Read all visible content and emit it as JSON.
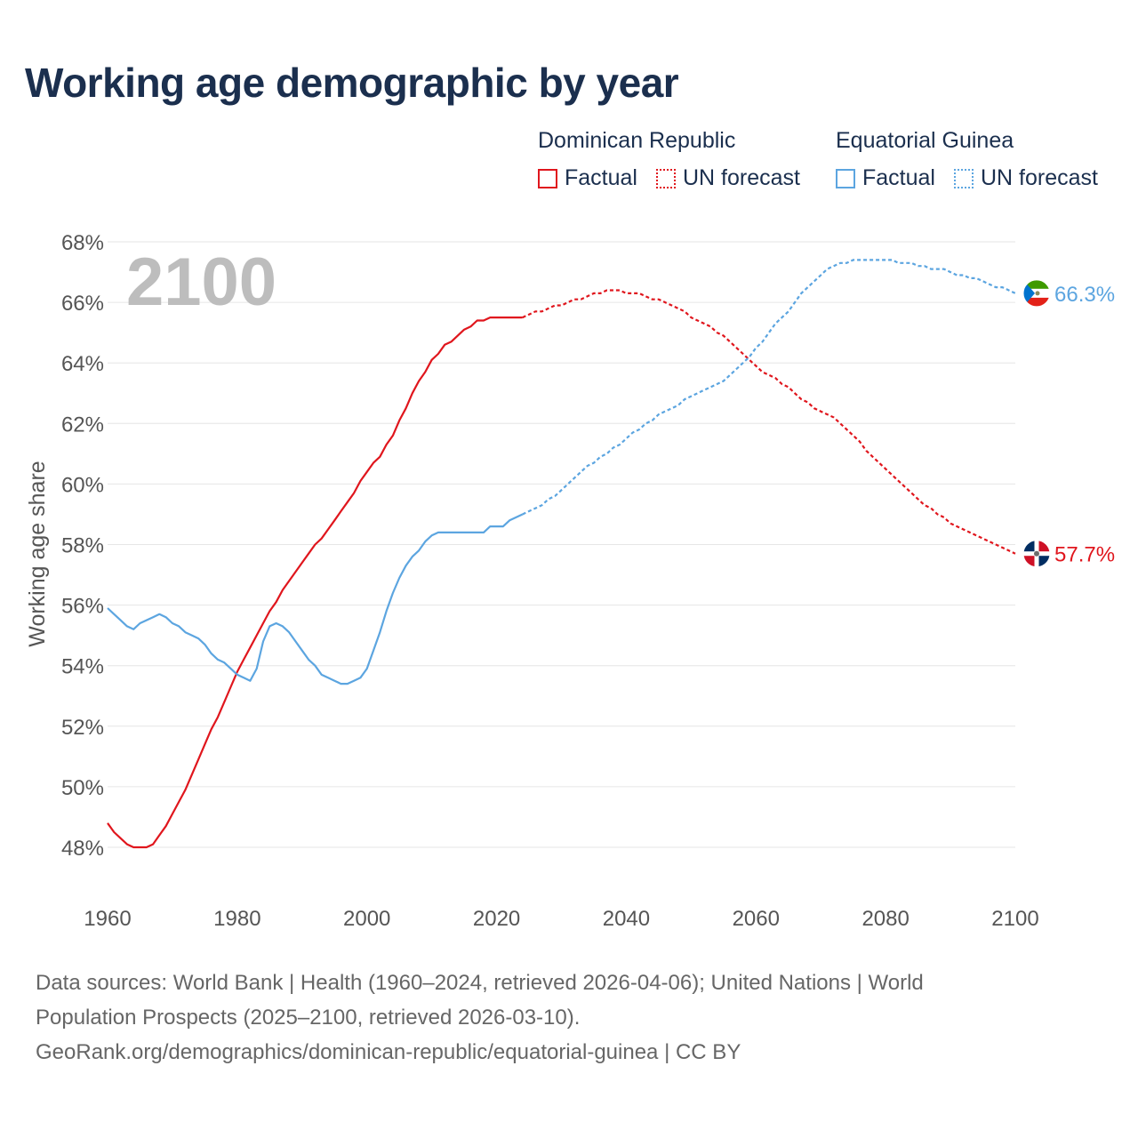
{
  "title": "Working age demographic by year",
  "legend": {
    "groups": [
      {
        "name": "Dominican Republic",
        "factual": "Factual",
        "forecast": "UN forecast",
        "color": "#e0161d"
      },
      {
        "name": "Equatorial Guinea",
        "factual": "Factual",
        "forecast": "UN forecast",
        "color": "#5ca5e0"
      }
    ]
  },
  "year_watermark": "2100",
  "end_labels": {
    "equatorial_guinea": "66.3%",
    "dominican_republic": "57.7%"
  },
  "footer": {
    "line1": "Data sources: World Bank | Health (1960–2024, retrieved 2026-04-06); United Nations | World",
    "line2": "Population Prospects (2025–2100, retrieved 2026-03-10).",
    "line3": "GeoRank.org/demographics/dominican-republic/equatorial-guinea | CC BY"
  },
  "chart_data": {
    "type": "line",
    "title": "Working age demographic by year",
    "xlabel": "",
    "ylabel": "Working age share",
    "xlim": [
      1960,
      2100
    ],
    "ylim": [
      47,
      68
    ],
    "x_ticks": [
      1960,
      1980,
      2000,
      2020,
      2040,
      2060,
      2080,
      2100
    ],
    "y_ticks": [
      48,
      50,
      52,
      54,
      56,
      58,
      60,
      62,
      64,
      66,
      68
    ],
    "y_tick_labels": [
      "48%",
      "50%",
      "52%",
      "54%",
      "56%",
      "58%",
      "60%",
      "62%",
      "64%",
      "66%",
      "68%"
    ],
    "x_tick_labels": [
      "1960",
      "1980",
      "2000",
      "2020",
      "2040",
      "2060",
      "2080",
      "2100"
    ],
    "factual_end_year": 2024,
    "series": [
      {
        "name": "Dominican Republic",
        "color": "#e0161d",
        "points": [
          [
            1960,
            48.8
          ],
          [
            1961,
            48.5
          ],
          [
            1962,
            48.3
          ],
          [
            1963,
            48.1
          ],
          [
            1964,
            48.0
          ],
          [
            1965,
            48.0
          ],
          [
            1966,
            48.0
          ],
          [
            1967,
            48.1
          ],
          [
            1968,
            48.4
          ],
          [
            1969,
            48.7
          ],
          [
            1970,
            49.1
          ],
          [
            1971,
            49.5
          ],
          [
            1972,
            49.9
          ],
          [
            1973,
            50.4
          ],
          [
            1974,
            50.9
          ],
          [
            1975,
            51.4
          ],
          [
            1976,
            51.9
          ],
          [
            1977,
            52.3
          ],
          [
            1978,
            52.8
          ],
          [
            1979,
            53.3
          ],
          [
            1980,
            53.8
          ],
          [
            1981,
            54.2
          ],
          [
            1982,
            54.6
          ],
          [
            1983,
            55.0
          ],
          [
            1984,
            55.4
          ],
          [
            1985,
            55.8
          ],
          [
            1986,
            56.1
          ],
          [
            1987,
            56.5
          ],
          [
            1988,
            56.8
          ],
          [
            1989,
            57.1
          ],
          [
            1990,
            57.4
          ],
          [
            1991,
            57.7
          ],
          [
            1992,
            58.0
          ],
          [
            1993,
            58.2
          ],
          [
            1994,
            58.5
          ],
          [
            1995,
            58.8
          ],
          [
            1996,
            59.1
          ],
          [
            1997,
            59.4
          ],
          [
            1998,
            59.7
          ],
          [
            1999,
            60.1
          ],
          [
            2000,
            60.4
          ],
          [
            2001,
            60.7
          ],
          [
            2002,
            60.9
          ],
          [
            2003,
            61.3
          ],
          [
            2004,
            61.6
          ],
          [
            2005,
            62.1
          ],
          [
            2006,
            62.5
          ],
          [
            2007,
            63.0
          ],
          [
            2008,
            63.4
          ],
          [
            2009,
            63.7
          ],
          [
            2010,
            64.1
          ],
          [
            2011,
            64.3
          ],
          [
            2012,
            64.6
          ],
          [
            2013,
            64.7
          ],
          [
            2014,
            64.9
          ],
          [
            2015,
            65.1
          ],
          [
            2016,
            65.2
          ],
          [
            2017,
            65.4
          ],
          [
            2018,
            65.4
          ],
          [
            2019,
            65.5
          ],
          [
            2020,
            65.5
          ],
          [
            2021,
            65.5
          ],
          [
            2022,
            65.5
          ],
          [
            2023,
            65.5
          ],
          [
            2024,
            65.5
          ],
          [
            2025,
            65.6
          ],
          [
            2026,
            65.7
          ],
          [
            2027,
            65.7
          ],
          [
            2028,
            65.8
          ],
          [
            2029,
            65.9
          ],
          [
            2030,
            65.9
          ],
          [
            2031,
            66.0
          ],
          [
            2032,
            66.1
          ],
          [
            2033,
            66.1
          ],
          [
            2034,
            66.2
          ],
          [
            2035,
            66.3
          ],
          [
            2036,
            66.3
          ],
          [
            2037,
            66.4
          ],
          [
            2038,
            66.4
          ],
          [
            2039,
            66.4
          ],
          [
            2040,
            66.3
          ],
          [
            2041,
            66.3
          ],
          [
            2042,
            66.3
          ],
          [
            2043,
            66.2
          ],
          [
            2044,
            66.1
          ],
          [
            2045,
            66.1
          ],
          [
            2046,
            66.0
          ],
          [
            2047,
            65.9
          ],
          [
            2048,
            65.8
          ],
          [
            2049,
            65.7
          ],
          [
            2050,
            65.5
          ],
          [
            2051,
            65.4
          ],
          [
            2052,
            65.3
          ],
          [
            2053,
            65.2
          ],
          [
            2054,
            65.0
          ],
          [
            2055,
            64.9
          ],
          [
            2056,
            64.7
          ],
          [
            2057,
            64.5
          ],
          [
            2058,
            64.3
          ],
          [
            2059,
            64.1
          ],
          [
            2060,
            63.9
          ],
          [
            2061,
            63.7
          ],
          [
            2062,
            63.6
          ],
          [
            2063,
            63.5
          ],
          [
            2064,
            63.3
          ],
          [
            2065,
            63.2
          ],
          [
            2066,
            63.0
          ],
          [
            2067,
            62.8
          ],
          [
            2068,
            62.7
          ],
          [
            2069,
            62.5
          ],
          [
            2070,
            62.4
          ],
          [
            2071,
            62.3
          ],
          [
            2072,
            62.2
          ],
          [
            2073,
            62.0
          ],
          [
            2074,
            61.8
          ],
          [
            2075,
            61.6
          ],
          [
            2076,
            61.4
          ],
          [
            2077,
            61.1
          ],
          [
            2078,
            60.9
          ],
          [
            2079,
            60.7
          ],
          [
            2080,
            60.5
          ],
          [
            2081,
            60.3
          ],
          [
            2082,
            60.1
          ],
          [
            2083,
            59.9
          ],
          [
            2084,
            59.7
          ],
          [
            2085,
            59.5
          ],
          [
            2086,
            59.3
          ],
          [
            2087,
            59.2
          ],
          [
            2088,
            59.0
          ],
          [
            2089,
            58.9
          ],
          [
            2090,
            58.7
          ],
          [
            2091,
            58.6
          ],
          [
            2092,
            58.5
          ],
          [
            2093,
            58.4
          ],
          [
            2094,
            58.3
          ],
          [
            2095,
            58.2
          ],
          [
            2096,
            58.1
          ],
          [
            2097,
            58.0
          ],
          [
            2098,
            57.9
          ],
          [
            2099,
            57.8
          ],
          [
            2100,
            57.7
          ]
        ]
      },
      {
        "name": "Equatorial Guinea",
        "color": "#5ca5e0",
        "points": [
          [
            1960,
            55.9
          ],
          [
            1961,
            55.7
          ],
          [
            1962,
            55.5
          ],
          [
            1963,
            55.3
          ],
          [
            1964,
            55.2
          ],
          [
            1965,
            55.4
          ],
          [
            1966,
            55.5
          ],
          [
            1967,
            55.6
          ],
          [
            1968,
            55.7
          ],
          [
            1969,
            55.6
          ],
          [
            1970,
            55.4
          ],
          [
            1971,
            55.3
          ],
          [
            1972,
            55.1
          ],
          [
            1973,
            55.0
          ],
          [
            1974,
            54.9
          ],
          [
            1975,
            54.7
          ],
          [
            1976,
            54.4
          ],
          [
            1977,
            54.2
          ],
          [
            1978,
            54.1
          ],
          [
            1979,
            53.9
          ],
          [
            1980,
            53.7
          ],
          [
            1981,
            53.6
          ],
          [
            1982,
            53.5
          ],
          [
            1983,
            53.9
          ],
          [
            1984,
            54.8
          ],
          [
            1985,
            55.3
          ],
          [
            1986,
            55.4
          ],
          [
            1987,
            55.3
          ],
          [
            1988,
            55.1
          ],
          [
            1989,
            54.8
          ],
          [
            1990,
            54.5
          ],
          [
            1991,
            54.2
          ],
          [
            1992,
            54.0
          ],
          [
            1993,
            53.7
          ],
          [
            1994,
            53.6
          ],
          [
            1995,
            53.5
          ],
          [
            1996,
            53.4
          ],
          [
            1997,
            53.4
          ],
          [
            1998,
            53.5
          ],
          [
            1999,
            53.6
          ],
          [
            2000,
            53.9
          ],
          [
            2001,
            54.5
          ],
          [
            2002,
            55.1
          ],
          [
            2003,
            55.8
          ],
          [
            2004,
            56.4
          ],
          [
            2005,
            56.9
          ],
          [
            2006,
            57.3
          ],
          [
            2007,
            57.6
          ],
          [
            2008,
            57.8
          ],
          [
            2009,
            58.1
          ],
          [
            2010,
            58.3
          ],
          [
            2011,
            58.4
          ],
          [
            2012,
            58.4
          ],
          [
            2013,
            58.4
          ],
          [
            2014,
            58.4
          ],
          [
            2015,
            58.4
          ],
          [
            2016,
            58.4
          ],
          [
            2017,
            58.4
          ],
          [
            2018,
            58.4
          ],
          [
            2019,
            58.6
          ],
          [
            2020,
            58.6
          ],
          [
            2021,
            58.6
          ],
          [
            2022,
            58.8
          ],
          [
            2023,
            58.9
          ],
          [
            2024,
            59.0
          ],
          [
            2025,
            59.1
          ],
          [
            2026,
            59.2
          ],
          [
            2027,
            59.3
          ],
          [
            2028,
            59.5
          ],
          [
            2029,
            59.6
          ],
          [
            2030,
            59.8
          ],
          [
            2031,
            60.0
          ],
          [
            2032,
            60.2
          ],
          [
            2033,
            60.4
          ],
          [
            2034,
            60.6
          ],
          [
            2035,
            60.7
          ],
          [
            2036,
            60.9
          ],
          [
            2037,
            61.0
          ],
          [
            2038,
            61.2
          ],
          [
            2039,
            61.3
          ],
          [
            2040,
            61.5
          ],
          [
            2041,
            61.7
          ],
          [
            2042,
            61.8
          ],
          [
            2043,
            62.0
          ],
          [
            2044,
            62.1
          ],
          [
            2045,
            62.3
          ],
          [
            2046,
            62.4
          ],
          [
            2047,
            62.5
          ],
          [
            2048,
            62.6
          ],
          [
            2049,
            62.8
          ],
          [
            2050,
            62.9
          ],
          [
            2051,
            63.0
          ],
          [
            2052,
            63.1
          ],
          [
            2053,
            63.2
          ],
          [
            2054,
            63.3
          ],
          [
            2055,
            63.4
          ],
          [
            2056,
            63.6
          ],
          [
            2057,
            63.8
          ],
          [
            2058,
            64.0
          ],
          [
            2059,
            64.2
          ],
          [
            2060,
            64.5
          ],
          [
            2061,
            64.7
          ],
          [
            2062,
            65.0
          ],
          [
            2063,
            65.3
          ],
          [
            2064,
            65.5
          ],
          [
            2065,
            65.7
          ],
          [
            2066,
            66.0
          ],
          [
            2067,
            66.3
          ],
          [
            2068,
            66.5
          ],
          [
            2069,
            66.7
          ],
          [
            2070,
            66.9
          ],
          [
            2071,
            67.1
          ],
          [
            2072,
            67.2
          ],
          [
            2073,
            67.3
          ],
          [
            2074,
            67.3
          ],
          [
            2075,
            67.4
          ],
          [
            2076,
            67.4
          ],
          [
            2077,
            67.4
          ],
          [
            2078,
            67.4
          ],
          [
            2079,
            67.4
          ],
          [
            2080,
            67.4
          ],
          [
            2081,
            67.4
          ],
          [
            2082,
            67.3
          ],
          [
            2083,
            67.3
          ],
          [
            2084,
            67.3
          ],
          [
            2085,
            67.2
          ],
          [
            2086,
            67.2
          ],
          [
            2087,
            67.1
          ],
          [
            2088,
            67.1
          ],
          [
            2089,
            67.1
          ],
          [
            2090,
            67.0
          ],
          [
            2091,
            66.9
          ],
          [
            2092,
            66.9
          ],
          [
            2093,
            66.8
          ],
          [
            2094,
            66.8
          ],
          [
            2095,
            66.7
          ],
          [
            2096,
            66.6
          ],
          [
            2097,
            66.5
          ],
          [
            2098,
            66.5
          ],
          [
            2099,
            66.4
          ],
          [
            2100,
            66.3
          ]
        ]
      }
    ]
  }
}
